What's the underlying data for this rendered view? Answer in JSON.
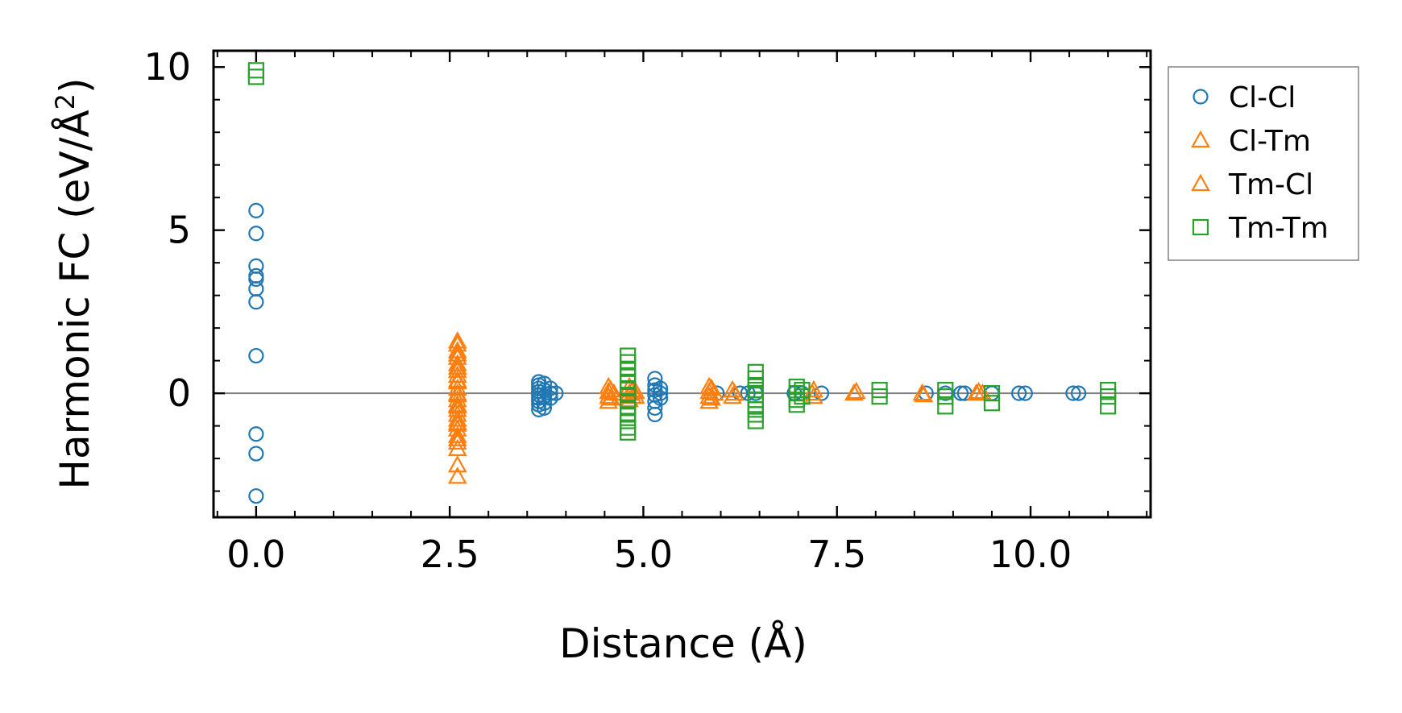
{
  "chart_data": {
    "type": "scatter",
    "xlabel": "Distance (Å)",
    "ylabel_main": "Harmonic FC (eV/Å",
    "ylabel_sup": "2",
    "ylabel_close": ")",
    "xlim": [
      -0.55,
      11.55
    ],
    "ylim": [
      -3.8,
      10.5
    ],
    "x_ticks": [
      0.0,
      2.5,
      5.0,
      7.5,
      10.0
    ],
    "x_tick_labels": [
      "0.0",
      "2.5",
      "5.0",
      "7.5",
      "10.0"
    ],
    "y_ticks": [
      0,
      5,
      10
    ],
    "y_tick_labels": [
      "0",
      "5",
      "10"
    ],
    "zero_line": 0,
    "legend_position": "outside-right",
    "series": [
      {
        "name": "Cl-Cl",
        "marker": "circle",
        "color": "#1f77b4",
        "points": [
          [
            0.0,
            5.6
          ],
          [
            0.0,
            4.9
          ],
          [
            0.0,
            3.9
          ],
          [
            0.0,
            3.6
          ],
          [
            0.0,
            3.5
          ],
          [
            0.0,
            3.2
          ],
          [
            0.0,
            2.8
          ],
          [
            0.0,
            1.15
          ],
          [
            0.0,
            -1.25
          ],
          [
            0.0,
            -1.85
          ],
          [
            0.0,
            -3.15
          ],
          [
            3.65,
            0.35
          ],
          [
            3.65,
            0.25
          ],
          [
            3.65,
            0.15
          ],
          [
            3.65,
            0.05
          ],
          [
            3.65,
            -0.05
          ],
          [
            3.65,
            -0.15
          ],
          [
            3.65,
            -0.25
          ],
          [
            3.65,
            -0.35
          ],
          [
            3.65,
            -0.5
          ],
          [
            3.72,
            0.3
          ],
          [
            3.72,
            0.1
          ],
          [
            3.72,
            -0.1
          ],
          [
            3.72,
            -0.3
          ],
          [
            3.72,
            -0.45
          ],
          [
            3.8,
            0.15
          ],
          [
            3.8,
            0.0
          ],
          [
            3.8,
            -0.15
          ],
          [
            3.87,
            0.0
          ],
          [
            5.15,
            0.45
          ],
          [
            5.15,
            0.25
          ],
          [
            5.15,
            0.1
          ],
          [
            5.15,
            -0.05
          ],
          [
            5.15,
            -0.25
          ],
          [
            5.15,
            -0.45
          ],
          [
            5.15,
            -0.65
          ],
          [
            5.22,
            0.15
          ],
          [
            5.22,
            0.0
          ],
          [
            5.22,
            -0.15
          ],
          [
            5.95,
            0.0
          ],
          [
            6.25,
            0.0
          ],
          [
            6.35,
            0.0
          ],
          [
            6.45,
            0.0
          ],
          [
            6.95,
            0.0
          ],
          [
            7.05,
            0.0
          ],
          [
            7.3,
            0.0
          ],
          [
            8.65,
            0.0
          ],
          [
            8.9,
            0.0
          ],
          [
            9.1,
            0.0
          ],
          [
            9.15,
            0.0
          ],
          [
            9.5,
            0.0
          ],
          [
            9.85,
            0.0
          ],
          [
            9.93,
            0.0
          ],
          [
            10.55,
            0.0
          ],
          [
            10.62,
            0.0
          ]
        ]
      },
      {
        "name": "Cl-Tm",
        "marker": "triangle",
        "color": "#ff7f0e",
        "points": [
          [
            2.6,
            1.5
          ],
          [
            2.6,
            1.3
          ],
          [
            2.6,
            1.1
          ],
          [
            2.6,
            0.9
          ],
          [
            2.6,
            0.7
          ],
          [
            2.6,
            0.55
          ],
          [
            2.6,
            0.35
          ],
          [
            2.6,
            0.15
          ],
          [
            2.6,
            -0.05
          ],
          [
            2.6,
            -0.2
          ],
          [
            2.6,
            -0.35
          ],
          [
            2.6,
            -0.5
          ],
          [
            2.6,
            -0.65
          ],
          [
            2.6,
            -0.8
          ],
          [
            2.6,
            -0.95
          ],
          [
            2.6,
            -1.1
          ],
          [
            2.6,
            -1.3
          ],
          [
            2.6,
            -1.5
          ],
          [
            2.6,
            -1.7
          ],
          [
            2.6,
            -2.2
          ],
          [
            2.6,
            -2.55
          ],
          [
            4.55,
            0.2
          ],
          [
            4.55,
            0.05
          ],
          [
            4.55,
            -0.1
          ],
          [
            4.55,
            -0.25
          ],
          [
            4.62,
            0.0
          ],
          [
            4.82,
            0.2
          ],
          [
            4.82,
            0.0
          ],
          [
            4.82,
            -0.2
          ],
          [
            4.9,
            0.05
          ],
          [
            4.9,
            -0.1
          ],
          [
            5.85,
            0.2
          ],
          [
            5.85,
            0.05
          ],
          [
            5.85,
            -0.1
          ],
          [
            5.85,
            -0.25
          ],
          [
            5.92,
            0.0
          ],
          [
            6.15,
            0.1
          ],
          [
            6.15,
            -0.1
          ],
          [
            7.2,
            0.1
          ],
          [
            7.2,
            -0.1
          ],
          [
            7.72,
            0.0
          ],
          [
            8.6,
            0.0
          ],
          [
            9.3,
            0.0
          ],
          [
            9.38,
            0.0
          ]
        ]
      },
      {
        "name": "Tm-Cl",
        "marker": "triangle",
        "color": "#ff7f0e",
        "points": [
          [
            2.6,
            1.6
          ],
          [
            2.6,
            1.2
          ],
          [
            2.6,
            0.8
          ],
          [
            2.6,
            0.4
          ],
          [
            2.6,
            0.0
          ],
          [
            2.6,
            -0.4
          ],
          [
            2.6,
            -0.9
          ],
          [
            2.6,
            -1.4
          ],
          [
            4.58,
            0.1
          ],
          [
            4.58,
            -0.15
          ],
          [
            4.86,
            0.1
          ],
          [
            4.86,
            -0.1
          ],
          [
            5.88,
            0.15
          ],
          [
            5.88,
            -0.15
          ],
          [
            6.18,
            0.0
          ],
          [
            7.18,
            0.0
          ],
          [
            7.75,
            0.05
          ],
          [
            8.62,
            -0.05
          ],
          [
            9.33,
            0.05
          ]
        ]
      },
      {
        "name": "Tm-Tm",
        "marker": "square",
        "color": "#2ca02c",
        "points": [
          [
            0.0,
            9.9
          ],
          [
            0.0,
            9.7
          ],
          [
            4.8,
            1.15
          ],
          [
            4.8,
            0.95
          ],
          [
            4.8,
            0.75
          ],
          [
            4.8,
            0.55
          ],
          [
            4.8,
            0.35
          ],
          [
            4.8,
            0.15
          ],
          [
            4.8,
            -0.05
          ],
          [
            4.8,
            -0.25
          ],
          [
            4.8,
            -0.45
          ],
          [
            4.8,
            -0.65
          ],
          [
            4.8,
            -0.85
          ],
          [
            4.8,
            -1.05
          ],
          [
            4.8,
            -1.2
          ],
          [
            6.45,
            0.65
          ],
          [
            6.45,
            0.45
          ],
          [
            6.45,
            0.25
          ],
          [
            6.45,
            0.1
          ],
          [
            6.45,
            -0.05
          ],
          [
            6.45,
            -0.2
          ],
          [
            6.45,
            -0.35
          ],
          [
            6.45,
            -0.5
          ],
          [
            6.45,
            -0.65
          ],
          [
            6.45,
            -0.85
          ],
          [
            6.98,
            0.2
          ],
          [
            6.98,
            0.0
          ],
          [
            6.98,
            -0.2
          ],
          [
            6.98,
            -0.35
          ],
          [
            7.05,
            0.1
          ],
          [
            7.05,
            -0.1
          ],
          [
            8.05,
            0.1
          ],
          [
            8.05,
            -0.1
          ],
          [
            8.9,
            0.1
          ],
          [
            8.9,
            -0.1
          ],
          [
            8.9,
            -0.4
          ],
          [
            9.5,
            0.0
          ],
          [
            9.5,
            -0.3
          ],
          [
            11.0,
            0.1
          ],
          [
            11.0,
            -0.1
          ],
          [
            11.0,
            -0.4
          ]
        ]
      }
    ],
    "legend": [
      {
        "label": "Cl-Cl",
        "marker": "circle",
        "color": "#1f77b4"
      },
      {
        "label": "Cl-Tm",
        "marker": "triangle",
        "color": "#ff7f0e"
      },
      {
        "label": "Tm-Cl",
        "marker": "triangle",
        "color": "#ff7f0e"
      },
      {
        "label": "Tm-Tm",
        "marker": "square",
        "color": "#2ca02c"
      }
    ]
  }
}
